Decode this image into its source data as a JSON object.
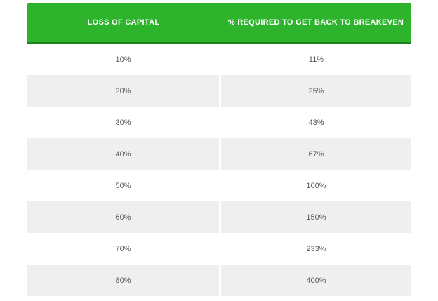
{
  "colors": {
    "header_green": "#2db42c",
    "header_divider_green": "#29a529",
    "header_bottom_border": "#1f8220",
    "alt_row_gray": "#efefef",
    "body_text": "#595959",
    "header_text": "#ffffff",
    "page_background": "#ffffff"
  },
  "chart_data": {
    "type": "table",
    "title": "",
    "columns": [
      "LOSS OF CAPITAL",
      "% REQUIRED TO GET BACK TO BREAKEVEN"
    ],
    "rows": [
      {
        "loss": "10%",
        "breakeven": "11%"
      },
      {
        "loss": "20%",
        "breakeven": "25%"
      },
      {
        "loss": "30%",
        "breakeven": "43%"
      },
      {
        "loss": "40%",
        "breakeven": "67%"
      },
      {
        "loss": "50%",
        "breakeven": "100%"
      },
      {
        "loss": "60%",
        "breakeven": "150%"
      },
      {
        "loss": "70%",
        "breakeven": "233%"
      },
      {
        "loss": "80%",
        "breakeven": "400%"
      }
    ],
    "layout": {
      "header_background": "#2db42c",
      "alternating_rows": true,
      "alt_row_background": "#efefef",
      "text_alignment": "center"
    }
  }
}
